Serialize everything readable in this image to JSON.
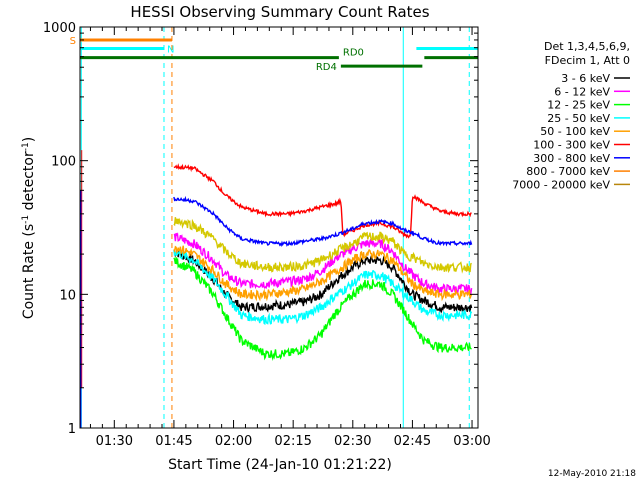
{
  "chart_data": {
    "type": "line",
    "title": "HESSI Observing Summary Count Rates",
    "xlabel": "Start Time (24-Jan-10 01:21:22)",
    "ylabel_main": "Count Rate (s",
    "ylabel_sup1": "-1",
    "ylabel_mid": " detector",
    "ylabel_sup2": "-1",
    "ylabel_end": ")",
    "y_scale": "log",
    "ylim": [
      1,
      1000
    ],
    "xlim_minutes": [
      81.37,
      181.5
    ],
    "x_ticks": [
      {
        "label": "01:30",
        "minutes": 90
      },
      {
        "label": "01:45",
        "minutes": 105
      },
      {
        "label": "02:00",
        "minutes": 120
      },
      {
        "label": "02:15",
        "minutes": 135
      },
      {
        "label": "02:30",
        "minutes": 150
      },
      {
        "label": "02:45",
        "minutes": 165
      },
      {
        "label": "03:00",
        "minutes": 180
      }
    ],
    "y_ticks": [
      {
        "label": "1",
        "value": 1
      },
      {
        "label": "10",
        "value": 10
      },
      {
        "label": "100",
        "value": 100
      },
      {
        "label": "1000",
        "value": 1000
      }
    ],
    "legend_header": [
      "Det 1,3,4,5,6,9,",
      "FDecim 1, Att 0"
    ],
    "legend_position": "right",
    "series": [
      {
        "name": "3 - 6 keV",
        "color": "#000000",
        "points": [
          [
            105,
            21
          ],
          [
            110,
            18
          ],
          [
            115,
            13
          ],
          [
            118,
            10
          ],
          [
            122,
            8
          ],
          [
            128,
            8.2
          ],
          [
            134,
            8.4
          ],
          [
            138,
            8.8
          ],
          [
            142,
            10
          ],
          [
            146,
            13
          ],
          [
            150,
            16
          ],
          [
            153,
            18
          ],
          [
            157,
            18
          ],
          [
            160,
            16
          ],
          [
            163,
            12
          ],
          [
            165,
            10
          ],
          [
            168,
            9
          ],
          [
            172,
            8
          ],
          [
            176,
            8
          ],
          [
            180,
            8
          ]
        ]
      },
      {
        "name": "6 - 12 keV",
        "color": "#ff00ff",
        "points": [
          [
            105,
            27
          ],
          [
            110,
            24
          ],
          [
            115,
            18
          ],
          [
            118,
            14
          ],
          [
            122,
            12
          ],
          [
            128,
            12
          ],
          [
            134,
            12.5
          ],
          [
            138,
            13
          ],
          [
            142,
            15
          ],
          [
            146,
            19
          ],
          [
            150,
            22
          ],
          [
            153,
            24
          ],
          [
            157,
            24
          ],
          [
            160,
            21
          ],
          [
            163,
            16
          ],
          [
            165,
            14
          ],
          [
            168,
            12
          ],
          [
            172,
            11
          ],
          [
            176,
            11
          ],
          [
            180,
            11
          ]
        ]
      },
      {
        "name": "12 - 25 keV",
        "color": "#00ff00",
        "points": [
          [
            105,
            18
          ],
          [
            110,
            15
          ],
          [
            115,
            10
          ],
          [
            118,
            7
          ],
          [
            122,
            4.5
          ],
          [
            128,
            3.6
          ],
          [
            134,
            3.6
          ],
          [
            138,
            4
          ],
          [
            142,
            5
          ],
          [
            146,
            7.5
          ],
          [
            150,
            10
          ],
          [
            153,
            12
          ],
          [
            157,
            12
          ],
          [
            160,
            10
          ],
          [
            163,
            7.5
          ],
          [
            165,
            6
          ],
          [
            168,
            4.5
          ],
          [
            172,
            4
          ],
          [
            176,
            4
          ],
          [
            180,
            4
          ]
        ]
      },
      {
        "name": "25 - 50 keV",
        "color": "#00ffff",
        "points": [
          [
            105,
            21
          ],
          [
            110,
            18
          ],
          [
            115,
            13
          ],
          [
            118,
            10
          ],
          [
            122,
            7
          ],
          [
            128,
            6.5
          ],
          [
            134,
            6.5
          ],
          [
            138,
            7
          ],
          [
            142,
            8
          ],
          [
            146,
            10
          ],
          [
            150,
            12
          ],
          [
            153,
            14
          ],
          [
            157,
            14
          ],
          [
            160,
            12
          ],
          [
            163,
            10
          ],
          [
            165,
            9
          ],
          [
            168,
            7.5
          ],
          [
            172,
            7
          ],
          [
            176,
            7
          ],
          [
            180,
            7
          ]
        ]
      },
      {
        "name": "50 - 100 keV",
        "color": "#ffa000",
        "points": [
          [
            105,
            23
          ],
          [
            110,
            20
          ],
          [
            115,
            15
          ],
          [
            118,
            12
          ],
          [
            122,
            10
          ],
          [
            128,
            10
          ],
          [
            134,
            10.5
          ],
          [
            138,
            11
          ],
          [
            142,
            12.5
          ],
          [
            146,
            15
          ],
          [
            150,
            18
          ],
          [
            153,
            20
          ],
          [
            157,
            20
          ],
          [
            160,
            18
          ],
          [
            163,
            14
          ],
          [
            165,
            12
          ],
          [
            168,
            10.5
          ],
          [
            172,
            10
          ],
          [
            176,
            10
          ],
          [
            180,
            10
          ]
        ]
      },
      {
        "name": "100 - 300 keV",
        "color": "#ff0000",
        "points": [
          [
            105,
            90
          ],
          [
            110,
            88
          ],
          [
            115,
            70
          ],
          [
            118,
            55
          ],
          [
            122,
            45
          ],
          [
            128,
            40
          ],
          [
            134,
            40
          ],
          [
            138,
            42
          ],
          [
            142,
            45
          ],
          [
            146,
            48
          ],
          [
            147,
            50
          ],
          [
            147.5,
            28
          ],
          [
            150,
            30
          ],
          [
            153,
            33
          ],
          [
            157,
            34
          ],
          [
            160,
            32
          ],
          [
            163,
            28
          ],
          [
            164.5,
            27
          ],
          [
            165,
            55
          ],
          [
            168,
            48
          ],
          [
            172,
            42
          ],
          [
            176,
            40
          ],
          [
            180,
            40
          ]
        ]
      },
      {
        "name": "300 - 800 keV",
        "color": "#0000ff",
        "points": [
          [
            105,
            52
          ],
          [
            110,
            50
          ],
          [
            115,
            40
          ],
          [
            118,
            32
          ],
          [
            122,
            26
          ],
          [
            128,
            24
          ],
          [
            134,
            24
          ],
          [
            138,
            25
          ],
          [
            142,
            26
          ],
          [
            146,
            28
          ],
          [
            150,
            31
          ],
          [
            153,
            34
          ],
          [
            157,
            35
          ],
          [
            160,
            34
          ],
          [
            163,
            30
          ],
          [
            165,
            29
          ],
          [
            168,
            26
          ],
          [
            172,
            24
          ],
          [
            176,
            24
          ],
          [
            180,
            24
          ]
        ]
      },
      {
        "name": "800 - 7000 keV",
        "color": "#ff8000",
        "points": []
      },
      {
        "name": "7000 - 20000 keV",
        "color": "#b8860b",
        "points": []
      },
      {
        "name": "",
        "color": "#d4c800",
        "points": [
          [
            105,
            36
          ],
          [
            110,
            33
          ],
          [
            115,
            26
          ],
          [
            118,
            21
          ],
          [
            122,
            17
          ],
          [
            128,
            16
          ],
          [
            134,
            16
          ],
          [
            138,
            16.5
          ],
          [
            142,
            18
          ],
          [
            146,
            21
          ],
          [
            150,
            24
          ],
          [
            153,
            27
          ],
          [
            157,
            27
          ],
          [
            160,
            25
          ],
          [
            163,
            20
          ],
          [
            165,
            19
          ],
          [
            168,
            17
          ],
          [
            172,
            16
          ],
          [
            176,
            16
          ],
          [
            180,
            16
          ]
        ]
      }
    ],
    "annotations": [
      {
        "label": "S",
        "color": "#ff8000",
        "value": 800,
        "x_start": 81.37,
        "x_end": 104.5
      },
      {
        "label": "N",
        "color": "#00ffff",
        "value": 690,
        "x_start": 81.37,
        "x_end": 102.5
      },
      {
        "label": "",
        "color": "#00ffff",
        "value": 690,
        "x_start": 166,
        "x_end": 181.5
      },
      {
        "label": "RD0",
        "color": "#007000",
        "value": 590,
        "x_start": 81.37,
        "x_end": 146.5
      },
      {
        "label": "",
        "color": "#007000",
        "value": 590,
        "x_start": 168,
        "x_end": 181.5
      },
      {
        "label": "RD4",
        "color": "#007000",
        "value": 510,
        "x_start": 147,
        "x_end": 167.5
      }
    ],
    "vertical_markers": [
      {
        "minutes": 81.7,
        "color": "#00ffff",
        "style": "solid"
      },
      {
        "minutes": 102.5,
        "color": "#00ffff",
        "style": "dashed"
      },
      {
        "minutes": 104.5,
        "color": "#ff8000",
        "style": "dashed"
      },
      {
        "minutes": 162.7,
        "color": "#00ffff",
        "style": "solid"
      },
      {
        "minutes": 179.3,
        "color": "#00ffff",
        "style": "dashed"
      }
    ]
  },
  "footer": {
    "timestamp": "12-May-2010 21:18"
  }
}
